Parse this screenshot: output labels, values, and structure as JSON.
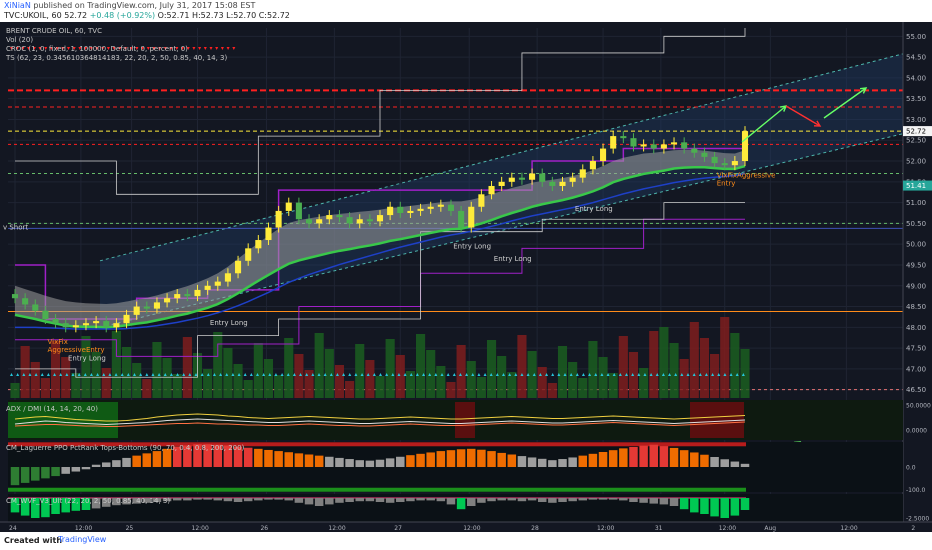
{
  "header": {
    "author": "XiNiaN",
    "published": "published on TradingView.com, July 31, 2017 15:08 EST",
    "symbol_line": "TVC:UKOIL, 60",
    "last": "52.72",
    "change": "+0.48 (+0.92%)",
    "ohlc": "O:52.71 H:52.73 L:52.70 C:52.72"
  },
  "legend": [
    "BRENT CRUDE OIL, 60, TVC",
    "Vol (20)",
    "CROC (1, 0, fixed, 1, 100000, Default, 0, percent, 0)",
    "TS (62, 23, 0.345610364814183, 22, 20, 2, 50, 0.85, 40, 14, 3)"
  ],
  "footer": {
    "created": "Created with",
    "brand": "TradingView"
  },
  "colors": {
    "bg": "#131722",
    "up": "#ffeb3b",
    "down": "#4caf50",
    "channel": "#1e3a5f",
    "ribbon": "#9e9e9e",
    "ma_blue": "#1e40c8",
    "ma_green": "#39c84a",
    "step": "#a020c8",
    "red": "#ff2020",
    "orange": "#ff8c1a",
    "cyan": "#26c6da"
  },
  "chart_data": [
    {
      "type": "candlestick",
      "title": "BRENT CRUDE OIL, 60, TVC",
      "x_ticks": [
        "24",
        "12:00",
        "25",
        "12:00",
        "26",
        "12:00",
        "27",
        "12:00",
        "28",
        "12:00",
        "31",
        "12:00",
        "Aug",
        "12:00",
        "2"
      ],
      "y_ticks": [
        46.5,
        47.0,
        47.5,
        48.0,
        48.5,
        49.0,
        49.5,
        50.0,
        50.5,
        51.0,
        51.5,
        52.0,
        52.5,
        53.0,
        53.5,
        54.0,
        54.5,
        55.0
      ],
      "ylim": [
        46.3,
        55.2
      ],
      "price_labels": [
        {
          "value": "52.72",
          "color": "#f5f5f5"
        },
        {
          "value": "51.41",
          "color": "#26a69a"
        }
      ],
      "close": [
        48.7,
        48.55,
        48.4,
        48.2,
        48.1,
        48.0,
        48.05,
        48.1,
        48.15,
        48.0,
        48.1,
        48.3,
        48.5,
        48.45,
        48.6,
        48.7,
        48.8,
        48.75,
        48.9,
        49.0,
        49.1,
        49.3,
        49.6,
        49.9,
        50.1,
        50.4,
        50.8,
        51.0,
        50.6,
        50.5,
        50.6,
        50.7,
        50.65,
        50.5,
        50.6,
        50.55,
        50.7,
        50.9,
        50.75,
        50.8,
        50.85,
        50.9,
        50.95,
        50.8,
        50.4,
        50.9,
        51.2,
        51.4,
        51.5,
        51.6,
        51.55,
        51.7,
        51.5,
        51.4,
        51.5,
        51.6,
        51.8,
        52.0,
        52.3,
        52.6,
        52.55,
        52.35,
        52.4,
        52.3,
        52.4,
        52.45,
        52.3,
        52.2,
        52.1,
        51.95,
        51.9,
        52.0,
        52.72
      ],
      "lines": [
        {
          "name": "ribbon-upper",
          "values": [
            49.0,
            48.92,
            48.84,
            48.76,
            48.69,
            48.63,
            48.6,
            48.58,
            48.57,
            48.56,
            48.58,
            48.62,
            48.67,
            48.71,
            48.77,
            48.84,
            48.92,
            48.99,
            49.08,
            49.18,
            49.3,
            49.46,
            49.65,
            49.84,
            50.03,
            50.2,
            50.37,
            50.51,
            50.58,
            50.62,
            50.66,
            50.7,
            50.73,
            50.75,
            50.78,
            50.8,
            50.83,
            50.87,
            50.89,
            50.92,
            50.95,
            50.98,
            51.01,
            51.03,
            51.03,
            51.07,
            51.13,
            51.2,
            51.28,
            51.35,
            51.41,
            51.48,
            51.52,
            51.55,
            51.59,
            51.64,
            51.7,
            51.78,
            51.88,
            52.0,
            52.08,
            52.13,
            52.18,
            52.2,
            52.23,
            52.26,
            52.27,
            52.27,
            52.25,
            52.22,
            52.19,
            52.18,
            52.26
          ]
        },
        {
          "name": "ribbon-lower",
          "values": [
            48.3,
            48.25,
            48.2,
            48.14,
            48.09,
            48.04,
            48.02,
            48.01,
            48.01,
            48.0,
            48.02,
            48.05,
            48.09,
            48.12,
            48.17,
            48.22,
            48.28,
            48.33,
            48.4,
            48.47,
            48.56,
            48.68,
            48.82,
            48.97,
            49.12,
            49.26,
            49.4,
            49.53,
            49.61,
            49.67,
            49.73,
            49.79,
            49.84,
            49.88,
            49.93,
            49.97,
            50.02,
            50.08,
            50.12,
            50.17,
            50.22,
            50.27,
            50.32,
            50.36,
            50.37,
            50.43,
            50.5,
            50.58,
            50.67,
            50.75,
            50.82,
            50.9,
            50.96,
            51.01,
            51.06,
            51.12,
            51.19,
            51.27,
            51.37,
            51.49,
            51.57,
            51.63,
            51.69,
            51.73,
            51.77,
            51.82,
            51.84,
            51.85,
            51.85,
            51.83,
            51.81,
            51.81,
            51.88
          ]
        },
        {
          "name": "ma-blue",
          "values": [
            48.0,
            48.0,
            48.0,
            47.99,
            47.98,
            47.97,
            47.96,
            47.96,
            47.96,
            47.96,
            47.96,
            47.97,
            47.99,
            48.01,
            48.04,
            48.08,
            48.12,
            48.17,
            48.22,
            48.28,
            48.35,
            48.43,
            48.52,
            48.62,
            48.73,
            48.84,
            48.96,
            49.08,
            49.18,
            49.27,
            49.35,
            49.43,
            49.51,
            49.58,
            49.65,
            49.72,
            49.79,
            49.86,
            49.93,
            49.99,
            50.05,
            50.11,
            50.17,
            50.22,
            50.26,
            50.31,
            50.37,
            50.43,
            50.49,
            50.56,
            50.62,
            50.68,
            50.73,
            50.78,
            50.83,
            50.88,
            50.94,
            51.0,
            51.07,
            51.14,
            51.21,
            51.27,
            51.33,
            51.38,
            51.43,
            51.48,
            51.52,
            51.56,
            51.59,
            51.61,
            51.63,
            51.65,
            51.7
          ]
        }
      ]
    },
    {
      "type": "line",
      "title": "ADX / DMI (14, 14, 20, 40)",
      "y_ticks": [
        "50.0000",
        "0.0000"
      ],
      "ylim": [
        -20,
        60
      ],
      "series": [
        {
          "name": "",
          "values": [
            12,
            14,
            16,
            18,
            17,
            15,
            14,
            13,
            12,
            11,
            12,
            13,
            14,
            15,
            17,
            19,
            20,
            21,
            22,
            21,
            20,
            19,
            18,
            17,
            16,
            15,
            15,
            16,
            17,
            18,
            17,
            16,
            15,
            14,
            13,
            13,
            14,
            15,
            16,
            17,
            16,
            15,
            14,
            13,
            13,
            14,
            15,
            16,
            17,
            18,
            17,
            16,
            15,
            14,
            14,
            15,
            16,
            17,
            18,
            19,
            18,
            17,
            16,
            15,
            14,
            13,
            14,
            15,
            16,
            17,
            18,
            19,
            20
          ]
        },
        {
          "name": "",
          "values": [
            22,
            24,
            26,
            27,
            25,
            23,
            21,
            20,
            19,
            18,
            18,
            19,
            21,
            23,
            26,
            28,
            30,
            31,
            32,
            31,
            30,
            28,
            27,
            25,
            24,
            23,
            24,
            25,
            26,
            27,
            26,
            25,
            24,
            23,
            22,
            22,
            23,
            24,
            25,
            26,
            25,
            24,
            23,
            22,
            22,
            23,
            24,
            25,
            26,
            27,
            26,
            25,
            24,
            23,
            23,
            24,
            25,
            26,
            27,
            28,
            27,
            26,
            25,
            24,
            23,
            22,
            23,
            24,
            25,
            26,
            27,
            28,
            29
          ]
        },
        {
          "name": "",
          "values": [
            8,
            9,
            10,
            11,
            11,
            10,
            9,
            8,
            8,
            7,
            7,
            8,
            9,
            10,
            11,
            12,
            13,
            13,
            14,
            13,
            12,
            12,
            11,
            10,
            10,
            9,
            9,
            10,
            11,
            12,
            11,
            10,
            9,
            9,
            8,
            8,
            9,
            10,
            11,
            12,
            11,
            10,
            9,
            9,
            9,
            10,
            11,
            12,
            13,
            14,
            13,
            12,
            11,
            10,
            10,
            11,
            12,
            13,
            14,
            15,
            14,
            13,
            12,
            11,
            10,
            9,
            10,
            11,
            12,
            13,
            14,
            15,
            16
          ]
        }
      ]
    },
    {
      "type": "bar",
      "title": "CM_Laguerre PPO PctRank Tops-Bottoms (90, 70, 0.4, 0.8, 200, 200)",
      "y_ticks": [
        "0.0",
        "-100.0"
      ],
      "ylim": [
        -110,
        110
      ],
      "values": [
        -80,
        -70,
        -60,
        -50,
        -40,
        -30,
        -20,
        -10,
        10,
        20,
        30,
        40,
        50,
        60,
        70,
        80,
        90,
        95,
        100,
        100,
        98,
        95,
        90,
        85,
        80,
        75,
        70,
        65,
        60,
        55,
        50,
        45,
        40,
        35,
        30,
        28,
        32,
        38,
        45,
        52,
        58,
        64,
        70,
        74,
        78,
        80,
        76,
        70,
        62,
        55,
        48,
        42,
        36,
        30,
        35,
        42,
        50,
        58,
        66,
        74,
        82,
        88,
        94,
        98,
        92,
        84,
        74,
        64,
        54,
        44,
        34,
        24,
        14
      ]
    },
    {
      "type": "bar",
      "title": "CM_WVF_V3_Ult (22, 20, 2, 50, 0.85, 40, 14, 3)",
      "y_ticks": [
        "-2.5000"
      ],
      "ylim": [
        -3,
        0.5
      ],
      "values": [
        -1.8,
        -2.2,
        -2.5,
        -2.4,
        -2.0,
        -1.8,
        -1.6,
        -1.5,
        -1.3,
        -1.1,
        -0.9,
        -0.8,
        -0.7,
        -0.6,
        -0.5,
        -0.4,
        -0.3,
        -0.3,
        -0.2,
        -0.2,
        -0.3,
        -0.4,
        -0.5,
        -0.4,
        -0.3,
        -0.2,
        -0.2,
        -0.3,
        -0.6,
        -0.8,
        -1.0,
        -0.8,
        -0.6,
        -0.5,
        -0.4,
        -0.4,
        -0.5,
        -0.6,
        -0.5,
        -0.4,
        -0.3,
        -0.3,
        -0.4,
        -0.8,
        -1.4,
        -1.0,
        -0.6,
        -0.4,
        -0.3,
        -0.3,
        -0.4,
        -0.3,
        -0.5,
        -0.6,
        -0.5,
        -0.4,
        -0.3,
        -0.2,
        -0.2,
        -0.2,
        -0.3,
        -0.5,
        -0.6,
        -0.7,
        -0.8,
        -1.0,
        -1.4,
        -1.8,
        -2.0,
        -2.3,
        -2.5,
        -2.2,
        -1.5
      ]
    }
  ],
  "annotations": {
    "entry_long": [
      {
        "text": "Entry Long",
        "i": 21,
        "price": 48.05
      },
      {
        "text": "Entry Long",
        "i": 7,
        "price": 47.2
      },
      {
        "text": "Entry Long",
        "i": 45,
        "price": 49.9
      },
      {
        "text": "Entry Long",
        "i": 49,
        "price": 49.6
      },
      {
        "text": "Entry Long",
        "i": 57,
        "price": 50.8
      }
    ],
    "short": {
      "text": "v Short",
      "price": 50.35
    },
    "signals": [
      {
        "lines": [
          "VixFix",
          "AggressiveEntry"
        ],
        "i": 4,
        "price": 47.6
      },
      {
        "lines": [
          "VixFixAggressive",
          "Entry"
        ],
        "i": 70,
        "price": 51.6
      }
    ]
  }
}
